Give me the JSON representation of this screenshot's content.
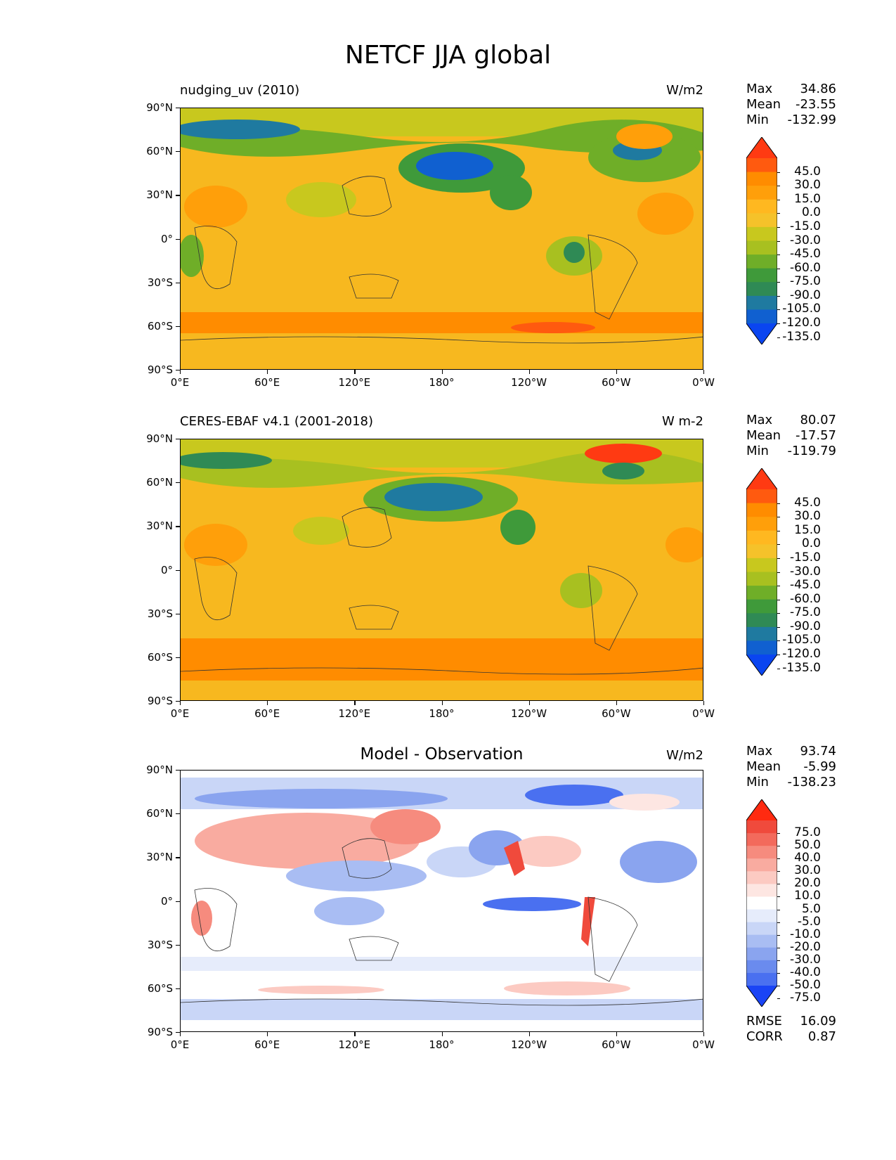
{
  "title": "NETCF JJA global",
  "x_ticks": [
    "0°E",
    "60°E",
    "120°E",
    "180°",
    "120°W",
    "60°W",
    "0°W"
  ],
  "y_ticks": [
    "90°N",
    "60°N",
    "30°N",
    "0°",
    "30°S",
    "60°S",
    "90°S"
  ],
  "panels": [
    {
      "left_title": "nudging_uv (2010)",
      "center_title": "",
      "units": "W/m2",
      "stats": {
        "max_label": "Max",
        "max": "34.86",
        "mean_label": "Mean",
        "mean": "-23.55",
        "min_label": "Min",
        "min": "-132.99"
      },
      "cbar_labels": [
        "45.0",
        "30.0",
        "15.0",
        "0.0",
        "-15.0",
        "-30.0",
        "-45.0",
        "-60.0",
        "-75.0",
        "-90.0",
        "-105.0",
        "-120.0",
        "-135.0"
      ],
      "cbar_colors": [
        "#ff3a12",
        "#ff5a0f",
        "#ff8c00",
        "#ff9f0a",
        "#ffb820",
        "#f5c22a",
        "#c8c81e",
        "#a8c020",
        "#6fae28",
        "#3f9a3a",
        "#2f8a55",
        "#1f7aa0",
        "#1060d0",
        "#0a45f0"
      ]
    },
    {
      "left_title": "CERES-EBAF v4.1 (2001-2018)",
      "center_title": "",
      "units": "W m-2",
      "stats": {
        "max_label": "Max",
        "max": "80.07",
        "mean_label": "Mean",
        "mean": "-17.57",
        "min_label": "Min",
        "min": "-119.79"
      },
      "cbar_labels": [
        "45.0",
        "30.0",
        "15.0",
        "0.0",
        "-15.0",
        "-30.0",
        "-45.0",
        "-60.0",
        "-75.0",
        "-90.0",
        "-105.0",
        "-120.0",
        "-135.0"
      ],
      "cbar_colors": [
        "#ff3a12",
        "#ff5a0f",
        "#ff8c00",
        "#ff9f0a",
        "#ffb820",
        "#f5c22a",
        "#c8c81e",
        "#a8c020",
        "#6fae28",
        "#3f9a3a",
        "#2f8a55",
        "#1f7aa0",
        "#1060d0",
        "#0a45f0"
      ]
    },
    {
      "left_title": "",
      "center_title": "Model - Observation",
      "units": "W/m2",
      "stats": {
        "max_label": "Max",
        "max": "93.74",
        "mean_label": "Mean",
        "mean": "-5.99",
        "min_label": "Min",
        "min": "-138.23"
      },
      "cbar_labels": [
        "75.0",
        "50.0",
        "40.0",
        "30.0",
        "20.0",
        "10.0",
        "5.0",
        "-5.0",
        "-10.0",
        "-20.0",
        "-30.0",
        "-40.0",
        "-50.0",
        "-75.0"
      ],
      "cbar_colors": [
        "#ff2a10",
        "#f04a3c",
        "#f36a5c",
        "#f68b7e",
        "#f9aba0",
        "#fccac2",
        "#fde6e2",
        "#ffffff",
        "#e6ecfb",
        "#c9d6f7",
        "#a9bdf3",
        "#8aa4ef",
        "#6a8bee",
        "#4a70f0",
        "#1a44f5"
      ],
      "metrics": {
        "rmse_label": "RMSE",
        "rmse": "16.09",
        "corr_label": "CORR",
        "corr": "0.87"
      }
    }
  ]
}
